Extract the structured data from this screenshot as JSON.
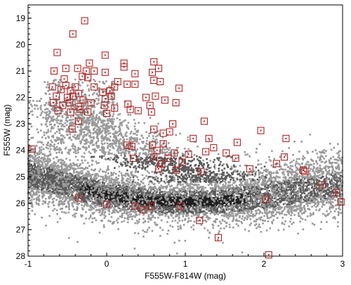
{
  "chart_data": {
    "type": "scatter",
    "title": "",
    "xlabel": "F555W-F814W (mag)",
    "ylabel": "F555W (mag)",
    "xlim": [
      -1,
      3
    ],
    "ylim": [
      28,
      18.5
    ],
    "y_inverted": true,
    "grid": false,
    "x_ticks": [
      "-1",
      "0",
      "1",
      "2",
      "3"
    ],
    "y_ticks": [
      "19",
      "20",
      "21",
      "22",
      "23",
      "24",
      "25",
      "26",
      "27",
      "28"
    ],
    "background_density": {
      "description_free_colors": {
        "core": "#1f1f1f",
        "mid": "#5a5a5a",
        "sparse": "#9a9a9a"
      },
      "ridge": [
        {
          "x": -1.0,
          "y": 24.9
        },
        {
          "x": -0.5,
          "y": 25.3
        },
        {
          "x": 0.0,
          "y": 25.7
        },
        {
          "x": 0.5,
          "y": 25.9
        },
        {
          "x": 1.0,
          "y": 25.95
        },
        {
          "x": 1.5,
          "y": 25.9
        },
        {
          "x": 2.0,
          "y": 25.75
        },
        {
          "x": 2.5,
          "y": 25.5
        },
        {
          "x": 3.0,
          "y": 25.3
        }
      ],
      "upper_branch": [
        {
          "x": -0.6,
          "y": 22.2
        },
        {
          "x": -0.3,
          "y": 22.8
        },
        {
          "x": 0.0,
          "y": 23.4
        },
        {
          "x": 0.4,
          "y": 24.0
        },
        {
          "x": 0.8,
          "y": 24.5
        },
        {
          "x": 1.2,
          "y": 24.9
        }
      ]
    },
    "series": [
      {
        "color": "#b22222",
        "marker": "open-square-with-dot",
        "points": [
          {
            "x": -0.28,
            "y": 19.1
          },
          {
            "x": -0.43,
            "y": 19.6
          },
          {
            "x": -0.63,
            "y": 20.3
          },
          {
            "x": -0.02,
            "y": 20.4
          },
          {
            "x": 0.22,
            "y": 20.7
          },
          {
            "x": -0.22,
            "y": 20.7
          },
          {
            "x": 0.6,
            "y": 20.65
          },
          {
            "x": -0.67,
            "y": 21.0
          },
          {
            "x": -0.52,
            "y": 20.9
          },
          {
            "x": -0.37,
            "y": 20.9
          },
          {
            "x": -0.26,
            "y": 21.0
          },
          {
            "x": -0.16,
            "y": 21.0
          },
          {
            "x": -0.02,
            "y": 21.05
          },
          {
            "x": 0.36,
            "y": 21.1
          },
          {
            "x": 0.22,
            "y": 20.85
          },
          {
            "x": 0.58,
            "y": 21.05
          },
          {
            "x": 0.66,
            "y": 20.9
          },
          {
            "x": -0.54,
            "y": 21.3
          },
          {
            "x": -0.31,
            "y": 21.2
          },
          {
            "x": -0.24,
            "y": 21.25
          },
          {
            "x": 0.14,
            "y": 21.4
          },
          {
            "x": 0.26,
            "y": 21.5
          },
          {
            "x": 0.36,
            "y": 21.5
          },
          {
            "x": 0.6,
            "y": 21.35
          },
          {
            "x": 0.68,
            "y": 21.4
          },
          {
            "x": 0.92,
            "y": 21.65
          },
          {
            "x": -0.69,
            "y": 21.6
          },
          {
            "x": -0.58,
            "y": 21.7
          },
          {
            "x": -0.52,
            "y": 21.55
          },
          {
            "x": -0.46,
            "y": 21.75
          },
          {
            "x": -0.4,
            "y": 21.6
          },
          {
            "x": -0.36,
            "y": 21.85
          },
          {
            "x": -0.16,
            "y": 21.6
          },
          {
            "x": -0.05,
            "y": 21.8
          },
          {
            "x": 0.04,
            "y": 21.75
          },
          {
            "x": 0.1,
            "y": 21.6
          },
          {
            "x": -0.64,
            "y": 21.95
          },
          {
            "x": -0.5,
            "y": 22.0
          },
          {
            "x": -0.43,
            "y": 21.95
          },
          {
            "x": -0.3,
            "y": 22.1
          },
          {
            "x": -0.02,
            "y": 22.05
          },
          {
            "x": 0.06,
            "y": 21.95
          },
          {
            "x": 0.5,
            "y": 22.0
          },
          {
            "x": 0.62,
            "y": 21.95
          },
          {
            "x": 0.74,
            "y": 22.1
          },
          {
            "x": -0.68,
            "y": 22.2
          },
          {
            "x": -0.56,
            "y": 22.3
          },
          {
            "x": -0.47,
            "y": 22.2
          },
          {
            "x": -0.36,
            "y": 22.35
          },
          {
            "x": -0.2,
            "y": 22.2
          },
          {
            "x": -0.03,
            "y": 22.3
          },
          {
            "x": 0.1,
            "y": 22.4
          },
          {
            "x": 0.27,
            "y": 22.25
          },
          {
            "x": 0.3,
            "y": 22.45
          },
          {
            "x": 0.55,
            "y": 22.3
          },
          {
            "x": 0.88,
            "y": 22.2
          },
          {
            "x": -0.62,
            "y": 22.5
          },
          {
            "x": -0.46,
            "y": 22.55
          },
          {
            "x": -0.34,
            "y": 22.45
          },
          {
            "x": -0.24,
            "y": 22.55
          },
          {
            "x": 0.0,
            "y": 22.6
          },
          {
            "x": 0.4,
            "y": 22.5
          },
          {
            "x": 0.57,
            "y": 22.55
          },
          {
            "x": -0.36,
            "y": 22.9
          },
          {
            "x": -0.44,
            "y": 23.2
          },
          {
            "x": 0.84,
            "y": 23.0
          },
          {
            "x": 1.24,
            "y": 22.9
          },
          {
            "x": 0.6,
            "y": 23.2
          },
          {
            "x": 0.72,
            "y": 23.35
          },
          {
            "x": 0.8,
            "y": 23.3
          },
          {
            "x": 1.1,
            "y": 23.55
          },
          {
            "x": 1.3,
            "y": 23.55
          },
          {
            "x": 1.36,
            "y": 23.9
          },
          {
            "x": 1.66,
            "y": 23.7
          },
          {
            "x": 1.96,
            "y": 23.25
          },
          {
            "x": 2.28,
            "y": 23.55
          },
          {
            "x": -0.95,
            "y": 23.95
          },
          {
            "x": 0.26,
            "y": 23.8
          },
          {
            "x": 0.32,
            "y": 23.85
          },
          {
            "x": 0.58,
            "y": 23.8
          },
          {
            "x": 0.64,
            "y": 24.0
          },
          {
            "x": 0.72,
            "y": 23.75
          },
          {
            "x": 0.86,
            "y": 24.1
          },
          {
            "x": 1.04,
            "y": 24.15
          },
          {
            "x": 1.26,
            "y": 24.05
          },
          {
            "x": 1.52,
            "y": 24.1
          },
          {
            "x": 2.26,
            "y": 24.25
          },
          {
            "x": 0.34,
            "y": 24.3
          },
          {
            "x": 0.6,
            "y": 24.25
          },
          {
            "x": 0.7,
            "y": 24.5
          },
          {
            "x": 0.78,
            "y": 24.3
          },
          {
            "x": 0.96,
            "y": 24.45
          },
          {
            "x": 1.64,
            "y": 24.3
          },
          {
            "x": 2.16,
            "y": 24.5
          },
          {
            "x": 0.66,
            "y": 24.7
          },
          {
            "x": 0.88,
            "y": 24.75
          },
          {
            "x": 1.2,
            "y": 24.8
          },
          {
            "x": 1.82,
            "y": 24.7
          },
          {
            "x": 2.5,
            "y": 24.75
          },
          {
            "x": 2.52,
            "y": 24.8
          },
          {
            "x": -0.36,
            "y": 25.8
          },
          {
            "x": 0.0,
            "y": 26.05
          },
          {
            "x": 0.36,
            "y": 26.1
          },
          {
            "x": 0.56,
            "y": 26.1
          },
          {
            "x": 0.94,
            "y": 26.1
          },
          {
            "x": 0.46,
            "y": 26.25
          },
          {
            "x": 1.18,
            "y": 26.65
          },
          {
            "x": 1.42,
            "y": 27.3
          },
          {
            "x": 2.06,
            "y": 27.95
          },
          {
            "x": 2.74,
            "y": 25.3
          },
          {
            "x": 2.92,
            "y": 25.6
          },
          {
            "x": 2.98,
            "y": 25.95
          },
          {
            "x": 2.02,
            "y": 25.85
          }
        ]
      }
    ]
  }
}
